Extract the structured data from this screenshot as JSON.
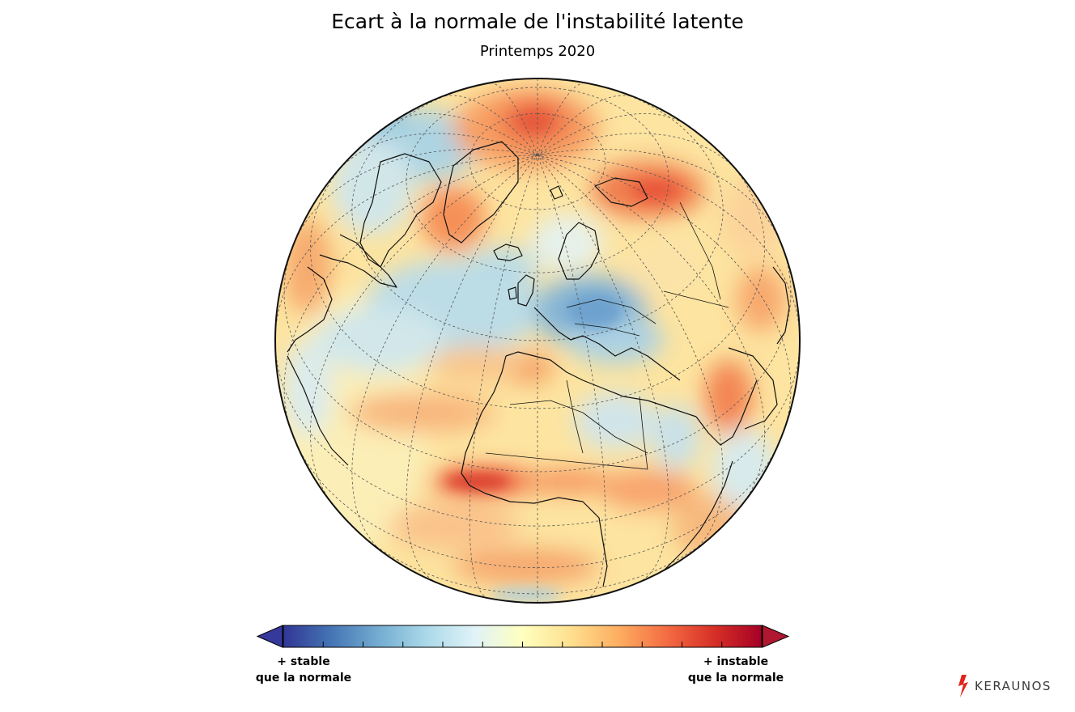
{
  "map": {
    "title": "Ecart à la normale de l'instabilité latente",
    "subtitle": "Printemps 2020",
    "projection": "orthographic",
    "center": {
      "lat": 45,
      "lon": 0
    },
    "graticule_step_deg": 15
  },
  "legend": {
    "label_low": [
      "+ stable",
      "que la normale"
    ],
    "label_high": [
      "+ instable",
      "que la normale"
    ],
    "colors": [
      "#313695",
      "#4575b4",
      "#74add1",
      "#abd9e9",
      "#e0f3f8",
      "#ffffbf",
      "#fee090",
      "#fdae61",
      "#f46d43",
      "#d73027",
      "#a50026"
    ],
    "arrow_low_color": "#34399b",
    "arrow_high_color": "#b01730",
    "tick_count": 11
  },
  "brand": {
    "name": "KERAUNOS",
    "accent": "#e2231a"
  }
}
